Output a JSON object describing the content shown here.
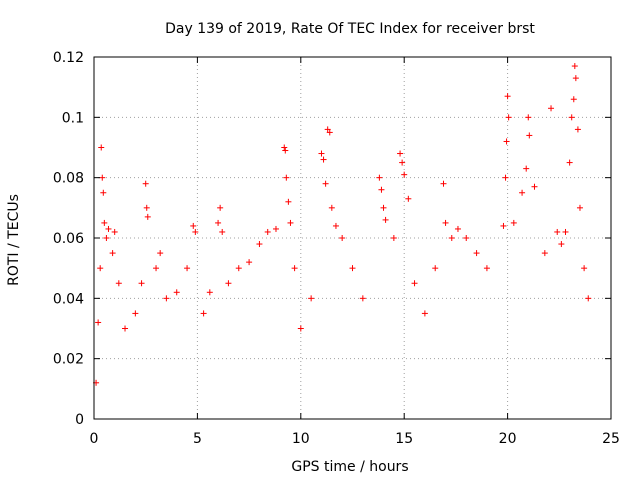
{
  "chart_data": {
    "type": "scatter",
    "title": "Day 139 of 2019, Rate Of TEC Index for receiver brst",
    "xlabel": "GPS time / hours",
    "ylabel": "ROTI / TECUs",
    "xlim": [
      0,
      25
    ],
    "ylim": [
      0,
      0.12
    ],
    "x_ticks": [
      0,
      5,
      10,
      15,
      20,
      25
    ],
    "x_tick_labels": [
      "0",
      "5",
      "10",
      "15",
      "20",
      "25"
    ],
    "y_ticks": [
      0,
      0.02,
      0.04,
      0.06,
      0.08,
      0.1,
      0.12
    ],
    "y_tick_labels": [
      "0",
      "0.02",
      "0.04",
      "0.06",
      "0.08",
      "0.1",
      "0.12"
    ],
    "grid": true,
    "marker": "+",
    "color": "#ff0000",
    "series": [
      {
        "name": "ROTI",
        "points": [
          [
            0.1,
            0.012
          ],
          [
            0.2,
            0.032
          ],
          [
            0.3,
            0.05
          ],
          [
            0.35,
            0.09
          ],
          [
            0.4,
            0.08
          ],
          [
            0.45,
            0.075
          ],
          [
            0.5,
            0.065
          ],
          [
            0.6,
            0.06
          ],
          [
            0.7,
            0.063
          ],
          [
            0.9,
            0.055
          ],
          [
            1.0,
            0.062
          ],
          [
            1.2,
            0.045
          ],
          [
            1.5,
            0.03
          ],
          [
            2.0,
            0.035
          ],
          [
            2.3,
            0.045
          ],
          [
            2.5,
            0.078
          ],
          [
            2.55,
            0.07
          ],
          [
            2.6,
            0.067
          ],
          [
            3.0,
            0.05
          ],
          [
            3.2,
            0.055
          ],
          [
            3.5,
            0.04
          ],
          [
            4.0,
            0.042
          ],
          [
            4.5,
            0.05
          ],
          [
            4.8,
            0.064
          ],
          [
            4.9,
            0.062
          ],
          [
            5.3,
            0.035
          ],
          [
            5.6,
            0.042
          ],
          [
            6.0,
            0.065
          ],
          [
            6.1,
            0.07
          ],
          [
            6.2,
            0.062
          ],
          [
            6.5,
            0.045
          ],
          [
            7.0,
            0.05
          ],
          [
            7.5,
            0.052
          ],
          [
            8.0,
            0.058
          ],
          [
            8.4,
            0.062
          ],
          [
            8.8,
            0.063
          ],
          [
            9.2,
            0.09
          ],
          [
            9.25,
            0.089
          ],
          [
            9.3,
            0.08
          ],
          [
            9.4,
            0.072
          ],
          [
            9.5,
            0.065
          ],
          [
            9.7,
            0.05
          ],
          [
            10.0,
            0.03
          ],
          [
            10.5,
            0.04
          ],
          [
            11.0,
            0.088
          ],
          [
            11.1,
            0.086
          ],
          [
            11.2,
            0.078
          ],
          [
            11.3,
            0.096
          ],
          [
            11.4,
            0.095
          ],
          [
            11.5,
            0.07
          ],
          [
            11.7,
            0.064
          ],
          [
            12.0,
            0.06
          ],
          [
            12.5,
            0.05
          ],
          [
            13.0,
            0.04
          ],
          [
            13.8,
            0.08
          ],
          [
            13.9,
            0.076
          ],
          [
            14.0,
            0.07
          ],
          [
            14.1,
            0.066
          ],
          [
            14.5,
            0.06
          ],
          [
            14.8,
            0.088
          ],
          [
            14.9,
            0.085
          ],
          [
            15.0,
            0.081
          ],
          [
            15.2,
            0.073
          ],
          [
            15.5,
            0.045
          ],
          [
            16.0,
            0.035
          ],
          [
            16.5,
            0.05
          ],
          [
            16.9,
            0.078
          ],
          [
            17.0,
            0.065
          ],
          [
            17.3,
            0.06
          ],
          [
            17.6,
            0.063
          ],
          [
            18.0,
            0.06
          ],
          [
            18.5,
            0.055
          ],
          [
            19.0,
            0.05
          ],
          [
            19.8,
            0.064
          ],
          [
            19.9,
            0.08
          ],
          [
            19.95,
            0.092
          ],
          [
            20.0,
            0.107
          ],
          [
            20.05,
            0.1
          ],
          [
            20.3,
            0.065
          ],
          [
            20.7,
            0.075
          ],
          [
            20.9,
            0.083
          ],
          [
            21.0,
            0.1
          ],
          [
            21.05,
            0.094
          ],
          [
            21.3,
            0.077
          ],
          [
            21.8,
            0.055
          ],
          [
            22.1,
            0.103
          ],
          [
            22.4,
            0.062
          ],
          [
            22.6,
            0.058
          ],
          [
            22.8,
            0.062
          ],
          [
            23.0,
            0.085
          ],
          [
            23.1,
            0.1
          ],
          [
            23.2,
            0.106
          ],
          [
            23.25,
            0.117
          ],
          [
            23.3,
            0.113
          ],
          [
            23.4,
            0.096
          ],
          [
            23.5,
            0.07
          ],
          [
            23.7,
            0.05
          ],
          [
            23.9,
            0.04
          ]
        ]
      }
    ]
  }
}
